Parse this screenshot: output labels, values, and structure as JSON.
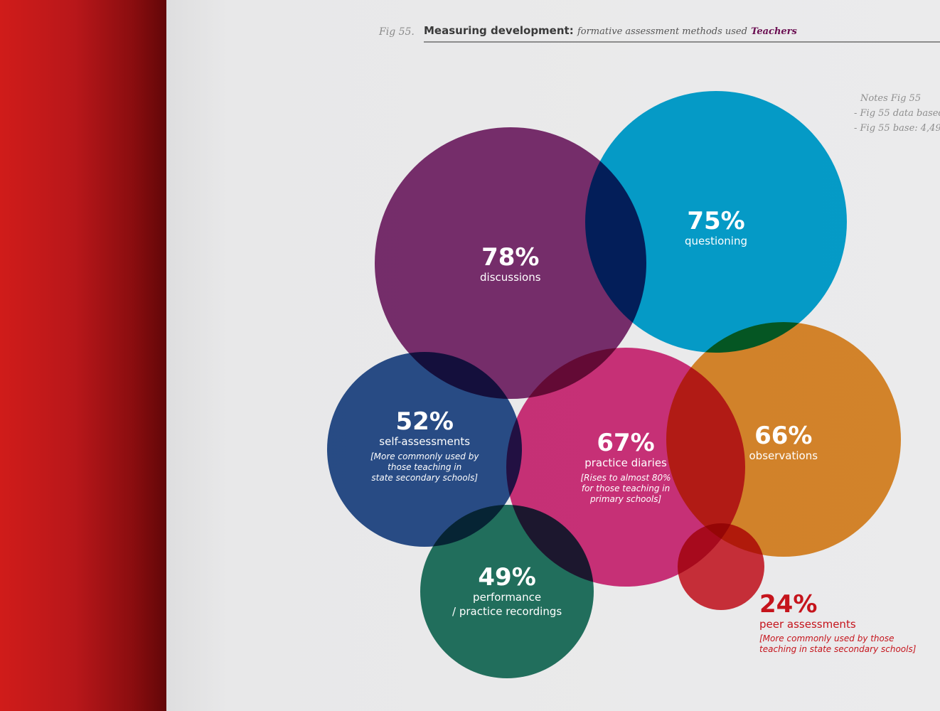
{
  "figure": {
    "number": "Fig 55.",
    "title": "Measuring development:",
    "subtitle": "formative assessment methods used",
    "audience": "Teachers"
  },
  "notes": {
    "heading": "Notes Fig 55",
    "lines": [
      "- Fig 55 data based",
      "- Fig 55 base: 4,49"
    ]
  },
  "colors": {
    "discussions": "#6b0f5c",
    "questioning": "#00a6d6",
    "self_assessments": "#08357e",
    "practice_diaries": "#d2136b",
    "observations": "#e07b0a",
    "performance": "#00624b",
    "peer_assessments": "#d0101d"
  },
  "chart_data": {
    "type": "bubble",
    "title": "Measuring development: formative assessment methods used Teachers",
    "unit": "% of teachers",
    "series": [
      {
        "key": "discussions",
        "value": 78,
        "label": "78%",
        "name": "discussions",
        "note": ""
      },
      {
        "key": "questioning",
        "value": 75,
        "label": "75%",
        "name": "questioning",
        "note": ""
      },
      {
        "key": "self_assessments",
        "value": 52,
        "label": "52%",
        "name": "self-assessments",
        "note": "[More commonly used by\nthose teaching in\nstate secondary schools]"
      },
      {
        "key": "practice_diaries",
        "value": 67,
        "label": "67%",
        "name": "practice diaries",
        "note": "[Rises to almost 80%\nfor those teaching in\nprimary schools]"
      },
      {
        "key": "observations",
        "value": 66,
        "label": "66%",
        "name": "observations",
        "note": ""
      },
      {
        "key": "performance",
        "value": 49,
        "label": "49%",
        "name": "performance\n/ practice recordings",
        "note": ""
      },
      {
        "key": "peer_assessments",
        "value": 24,
        "label": "24%",
        "name": "peer assessments",
        "note": "[More commonly used by those\nteaching in state secondary schools]"
      }
    ]
  }
}
